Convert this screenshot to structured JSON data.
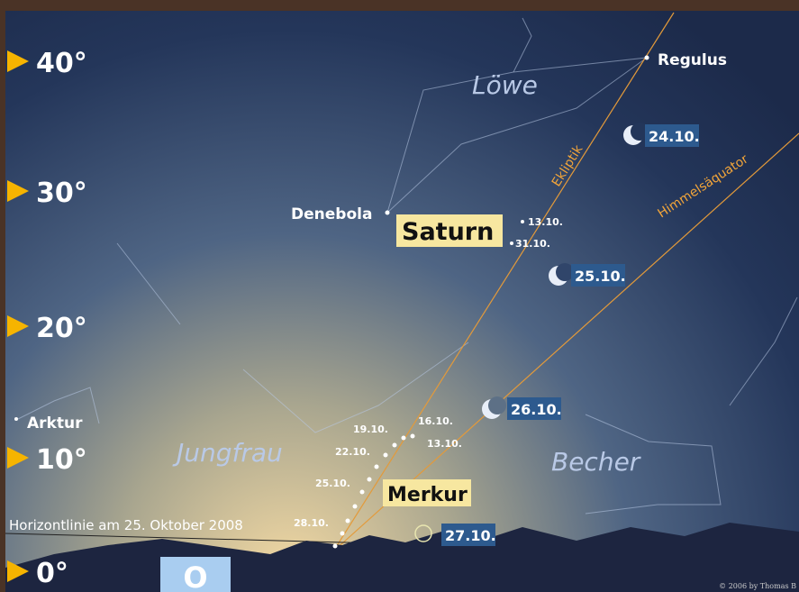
{
  "altitude_labels": [
    "40°",
    "30°",
    "20°",
    "10°",
    "0°"
  ],
  "stars": {
    "regulus": "Regulus",
    "denebola": "Denebola",
    "arktur": "Arktur"
  },
  "constellations": {
    "loewe": "Löwe",
    "jungfrau": "Jungfrau",
    "becher": "Becher"
  },
  "planets": {
    "saturn": {
      "name": "Saturn",
      "dates": [
        "13.10.",
        "31.10."
      ]
    },
    "merkur": {
      "name": "Merkur",
      "dates": [
        "16.10.",
        "13.10.",
        "19.10.",
        "22.10.",
        "25.10.",
        "28.10."
      ]
    }
  },
  "moon_dates": [
    "24.10.",
    "25.10.",
    "26.10.",
    "27.10."
  ],
  "lines": {
    "ekliptik": "Ekliptik",
    "aequator": "Himmelsäquator"
  },
  "horizon": "Horizontlinie am 25. Oktober 2008",
  "direction": "O",
  "copyright": "© 2006 by Thomas B"
}
